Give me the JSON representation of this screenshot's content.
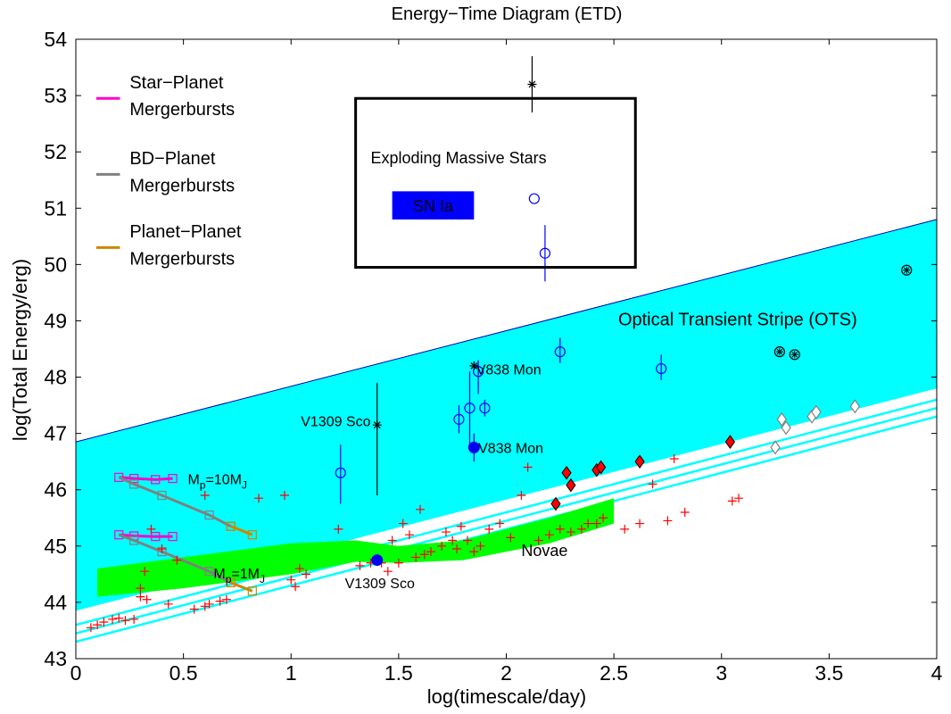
{
  "chart_data": {
    "type": "scatter",
    "title": "Energy−Time Diagram (ETD)",
    "xlabel": "log(timescale/day)",
    "ylabel": "log(Total Energy/erg)",
    "xlim": [
      0,
      4
    ],
    "ylim": [
      43,
      54
    ],
    "xticks": [
      "0",
      "0.5",
      "1",
      "1.5",
      "2",
      "2.5",
      "3",
      "3.5",
      "4"
    ],
    "yticks": [
      "43",
      "44",
      "45",
      "46",
      "47",
      "48",
      "49",
      "50",
      "51",
      "52",
      "53",
      "54"
    ],
    "grid": false,
    "colors": {
      "ots": "#00ffff",
      "novae_band": "#00ff00",
      "star_planet": "#ff00cc",
      "bd_planet": "#808080",
      "planet_planet": "#cc8800",
      "open_circle": "#0000ff",
      "red": "#ff0000",
      "diamond_fill": "#ff0000",
      "diamond_open": "#808080",
      "sn_box": "#0000ff"
    },
    "ots_region": {
      "upper": [
        [
          0,
          46.85
        ],
        [
          4,
          50.8
        ]
      ],
      "lower": [
        [
          0,
          43.85
        ],
        [
          4,
          47.8
        ]
      ]
    },
    "stripe_lines": [
      [
        [
          0,
          43.6
        ],
        [
          4,
          47.6
        ]
      ],
      [
        [
          0,
          43.45
        ],
        [
          4,
          47.45
        ]
      ],
      [
        [
          0,
          43.3
        ],
        [
          4,
          47.3
        ]
      ]
    ],
    "novae_band": {
      "upper": [
        [
          0.1,
          44.6
        ],
        [
          0.5,
          44.8
        ],
        [
          1.0,
          45.05
        ],
        [
          1.3,
          45.1
        ],
        [
          1.5,
          45.0
        ],
        [
          1.8,
          45.1
        ],
        [
          2.2,
          45.5
        ],
        [
          2.5,
          45.85
        ]
      ],
      "lower": [
        [
          2.5,
          45.4
        ],
        [
          2.2,
          45.05
        ],
        [
          1.8,
          44.75
        ],
        [
          1.5,
          44.7
        ],
        [
          1.3,
          44.72
        ],
        [
          1.0,
          44.5
        ],
        [
          0.5,
          44.25
        ],
        [
          0.1,
          44.1
        ]
      ]
    },
    "legend": [
      {
        "line1": "Star−Planet",
        "line2": "Mergerbursts",
        "color": "#ff00cc"
      },
      {
        "line1": "BD−Planet",
        "line2": "Mergerbursts",
        "color": "#808080"
      },
      {
        "line1": "Planet−Planet",
        "line2": "Mergerbursts",
        "color": "#cc8800"
      }
    ],
    "exploding_box": {
      "label": "Exploding Massive Stars",
      "sn_label": "SN Ia",
      "xrange": [
        1.3,
        2.6
      ],
      "yrange": [
        49.95,
        52.95
      ]
    },
    "annotations": {
      "ots": "Optical Transient Stripe (OTS)",
      "novae": "Novae",
      "v838_black": "V838 Mon",
      "v1309_black": "V1309 Sco",
      "v838_blue": "V838 Mon",
      "v1309_blue": "V1309 Sco",
      "mp10_main": "M",
      "mp10_sub": "p",
      "mp10_rest": "=10M",
      "mp10_j": "J",
      "mp1_main": "M",
      "mp1_sub": "p",
      "mp1_rest": "=1M",
      "mp1_j": "J"
    },
    "series": [
      {
        "kind": "red-plus",
        "points": [
          [
            0.07,
            43.55
          ],
          [
            0.1,
            43.6
          ],
          [
            0.13,
            43.65
          ],
          [
            0.17,
            43.7
          ],
          [
            0.2,
            43.72
          ],
          [
            0.23,
            43.68
          ],
          [
            0.27,
            43.7
          ],
          [
            0.3,
            44.1
          ],
          [
            0.3,
            44.25
          ],
          [
            0.32,
            44.55
          ],
          [
            0.33,
            44.05
          ],
          [
            0.35,
            45.3
          ],
          [
            0.4,
            44.95
          ],
          [
            0.43,
            43.97
          ],
          [
            0.47,
            44.75
          ],
          [
            0.55,
            43.88
          ],
          [
            0.6,
            43.93
          ],
          [
            0.62,
            43.97
          ],
          [
            0.67,
            44.02
          ],
          [
            0.7,
            44.05
          ],
          [
            0.6,
            45.9
          ],
          [
            0.85,
            45.85
          ],
          [
            0.97,
            45.9
          ],
          [
            1.0,
            44.4
          ],
          [
            1.02,
            44.28
          ],
          [
            1.04,
            44.6
          ],
          [
            1.07,
            44.5
          ],
          [
            1.22,
            45.3
          ],
          [
            1.32,
            44.65
          ],
          [
            1.37,
            44.7
          ],
          [
            1.42,
            44.7
          ],
          [
            1.45,
            44.55
          ],
          [
            1.47,
            45.1
          ],
          [
            1.5,
            44.7
          ],
          [
            1.52,
            45.4
          ],
          [
            1.55,
            45.2
          ],
          [
            1.58,
            44.8
          ],
          [
            1.6,
            45.65
          ],
          [
            1.62,
            44.85
          ],
          [
            1.65,
            44.9
          ],
          [
            1.7,
            45.0
          ],
          [
            1.72,
            45.25
          ],
          [
            1.75,
            45.1
          ],
          [
            1.77,
            44.95
          ],
          [
            1.79,
            45.35
          ],
          [
            1.82,
            45.1
          ],
          [
            1.85,
            44.9
          ],
          [
            1.88,
            45.0
          ],
          [
            1.92,
            45.3
          ],
          [
            1.97,
            45.4
          ],
          [
            2.02,
            45.15
          ],
          [
            2.07,
            45.9
          ],
          [
            2.1,
            46.4
          ],
          [
            2.15,
            45.1
          ],
          [
            2.2,
            45.2
          ],
          [
            2.25,
            45.3
          ],
          [
            2.3,
            45.25
          ],
          [
            2.35,
            45.3
          ],
          [
            2.38,
            45.4
          ],
          [
            2.42,
            45.4
          ],
          [
            2.45,
            45.5
          ],
          [
            2.55,
            45.3
          ],
          [
            2.62,
            45.4
          ],
          [
            2.68,
            46.1
          ],
          [
            2.75,
            45.45
          ],
          [
            2.78,
            46.55
          ],
          [
            2.83,
            45.6
          ],
          [
            3.05,
            45.8
          ],
          [
            3.08,
            45.85
          ]
        ]
      },
      {
        "kind": "blue-open-circle",
        "points": [
          [
            1.23,
            46.3
          ],
          [
            1.78,
            47.25
          ],
          [
            1.83,
            47.45
          ],
          [
            1.87,
            48.1
          ],
          [
            1.9,
            47.45
          ],
          [
            2.25,
            48.45
          ],
          [
            2.72,
            48.15
          ],
          [
            2.13,
            51.17
          ],
          [
            2.18,
            50.2
          ]
        ]
      },
      {
        "kind": "black-star",
        "points": [
          [
            1.4,
            47.15
          ],
          [
            1.85,
            48.2
          ],
          [
            2.12,
            53.2
          ]
        ]
      },
      {
        "kind": "circled-star",
        "points": [
          [
            3.27,
            48.45
          ],
          [
            3.34,
            48.4
          ],
          [
            3.86,
            49.9
          ]
        ]
      },
      {
        "kind": "red-filled-diamond",
        "points": [
          [
            2.23,
            45.75
          ],
          [
            2.28,
            46.3
          ],
          [
            2.3,
            46.08
          ],
          [
            2.42,
            46.35
          ],
          [
            2.44,
            46.4
          ],
          [
            2.62,
            46.5
          ],
          [
            3.04,
            46.85
          ]
        ]
      },
      {
        "kind": "open-diamond",
        "points": [
          [
            3.25,
            46.75
          ],
          [
            3.28,
            47.25
          ],
          [
            3.3,
            47.1
          ],
          [
            3.42,
            47.3
          ],
          [
            3.44,
            47.38
          ],
          [
            3.62,
            47.48
          ]
        ]
      },
      {
        "kind": "blue-filled-circle",
        "points": [
          [
            1.4,
            44.75
          ],
          [
            1.85,
            46.75
          ]
        ]
      }
    ],
    "error_bars": [
      {
        "x": 1.23,
        "y0": 45.75,
        "y1": 46.8,
        "color": "#0000ff"
      },
      {
        "x": 1.78,
        "y0": 47.0,
        "y1": 47.5,
        "color": "#0000ff"
      },
      {
        "x": 1.83,
        "y0": 46.8,
        "y1": 48.1,
        "color": "#0000ff"
      },
      {
        "x": 1.87,
        "y0": 47.7,
        "y1": 48.3,
        "color": "#0000ff"
      },
      {
        "x": 1.9,
        "y0": 47.3,
        "y1": 47.6,
        "color": "#0000ff"
      },
      {
        "x": 2.25,
        "y0": 48.25,
        "y1": 48.7,
        "color": "#0000ff"
      },
      {
        "x": 2.72,
        "y0": 47.95,
        "y1": 48.4,
        "color": "#0000ff"
      },
      {
        "x": 2.18,
        "y0": 49.7,
        "y1": 50.7,
        "color": "#0000ff"
      },
      {
        "x": 1.85,
        "y0": 46.5,
        "y1": 47.0,
        "color": "#0000ff"
      },
      {
        "x": 1.4,
        "y0": 45.9,
        "y1": 47.9,
        "color": "#000000"
      },
      {
        "x": 2.12,
        "y0": 52.7,
        "y1": 53.7,
        "color": "#000000"
      }
    ],
    "tracks": [
      {
        "kind": "star-planet",
        "color": "#ff00cc",
        "points": [
          [
            0.2,
            46.22
          ],
          [
            0.27,
            46.2
          ],
          [
            0.37,
            46.18
          ],
          [
            0.45,
            46.2
          ]
        ]
      },
      {
        "kind": "star-planet",
        "color": "#ff00cc",
        "points": [
          [
            0.2,
            45.2
          ],
          [
            0.27,
            45.18
          ],
          [
            0.37,
            45.17
          ],
          [
            0.45,
            45.17
          ]
        ]
      },
      {
        "kind": "bd-planet",
        "color": "#808080",
        "points": [
          [
            0.2,
            46.22
          ],
          [
            0.27,
            46.1
          ],
          [
            0.4,
            45.9
          ],
          [
            0.62,
            45.55
          ],
          [
            0.72,
            45.35
          ]
        ]
      },
      {
        "kind": "bd-planet",
        "color": "#808080",
        "points": [
          [
            0.2,
            45.2
          ],
          [
            0.27,
            45.1
          ],
          [
            0.4,
            44.9
          ],
          [
            0.62,
            44.55
          ],
          [
            0.72,
            44.35
          ]
        ]
      },
      {
        "kind": "planet-planet",
        "color": "#cc8800",
        "points": [
          [
            0.72,
            45.35
          ],
          [
            0.82,
            45.2
          ]
        ]
      },
      {
        "kind": "planet-planet",
        "color": "#cc8800",
        "points": [
          [
            0.72,
            44.35
          ],
          [
            0.82,
            44.2
          ]
        ]
      }
    ]
  }
}
